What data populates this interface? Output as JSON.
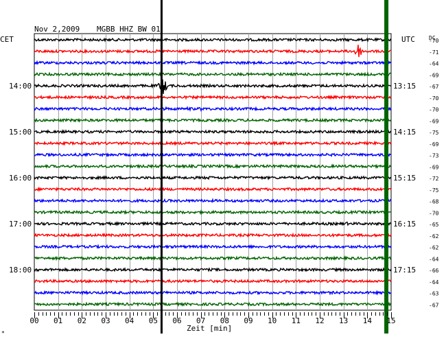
{
  "header": {
    "date": "Nov 2,2009",
    "station": "MGBB HHZ BW 01",
    "left_zone": "CET",
    "right_zone": "UTC",
    "dc_label": "DC",
    "x_axis_label": "Zeit [min]",
    "corner_mark": "*"
  },
  "colors": {
    "trace_colors": [
      "#000000",
      "#ff0000",
      "#0000ff",
      "#006400"
    ],
    "grid": "#a0a0a0",
    "event_line": "#000000",
    "highlight_bar": "#006400"
  },
  "chart_data": {
    "type": "line",
    "title": "",
    "xlabel": "Zeit [min]",
    "x_ticks": [
      "00",
      "01",
      "02",
      "03",
      "04",
      "05",
      "06",
      "07",
      "08",
      "09",
      "10",
      "11",
      "12",
      "13",
      "14",
      "15"
    ],
    "xlim": [
      0,
      15
    ],
    "rows": 24,
    "left_labels": [
      {
        "row": 4,
        "text": "14:00"
      },
      {
        "row": 8,
        "text": "15:00"
      },
      {
        "row": 12,
        "text": "16:00"
      },
      {
        "row": 16,
        "text": "17:00"
      },
      {
        "row": 20,
        "text": "18:00"
      }
    ],
    "right_labels": [
      {
        "row": 0,
        "text": "UTC"
      },
      {
        "row": 4,
        "text": "13:15"
      },
      {
        "row": 8,
        "text": "14:15"
      },
      {
        "row": 12,
        "text": "15:15"
      },
      {
        "row": 16,
        "text": "16:15"
      },
      {
        "row": 20,
        "text": "17:15"
      }
    ],
    "dc_values": [
      "-70",
      "-71",
      "-64",
      "-69",
      "-67",
      "-70",
      "-70",
      "-69",
      "-75",
      "-69",
      "-73",
      "-69",
      "-72",
      "-75",
      "-68",
      "-70",
      "-65",
      "-62",
      "-62",
      "-64",
      "-66",
      "-64",
      "-63",
      "-67"
    ],
    "event_minute": 5.35,
    "highlight_minute": 14.8,
    "events": [
      {
        "row": 1,
        "minute": 13.6,
        "amplitude": 12
      },
      {
        "row": 4,
        "minute": 5.4,
        "amplitude": 14
      },
      {
        "row": 6,
        "minute": 5.5,
        "amplitude": 3
      },
      {
        "row": 6,
        "minute": 6.5,
        "amplitude": 3
      },
      {
        "row": 6,
        "minute": 7.0,
        "amplitude": 3
      },
      {
        "row": 12,
        "minute": 7.4,
        "amplitude": 3
      },
      {
        "row": 16,
        "minute": 13.1,
        "amplitude": 3
      }
    ]
  }
}
